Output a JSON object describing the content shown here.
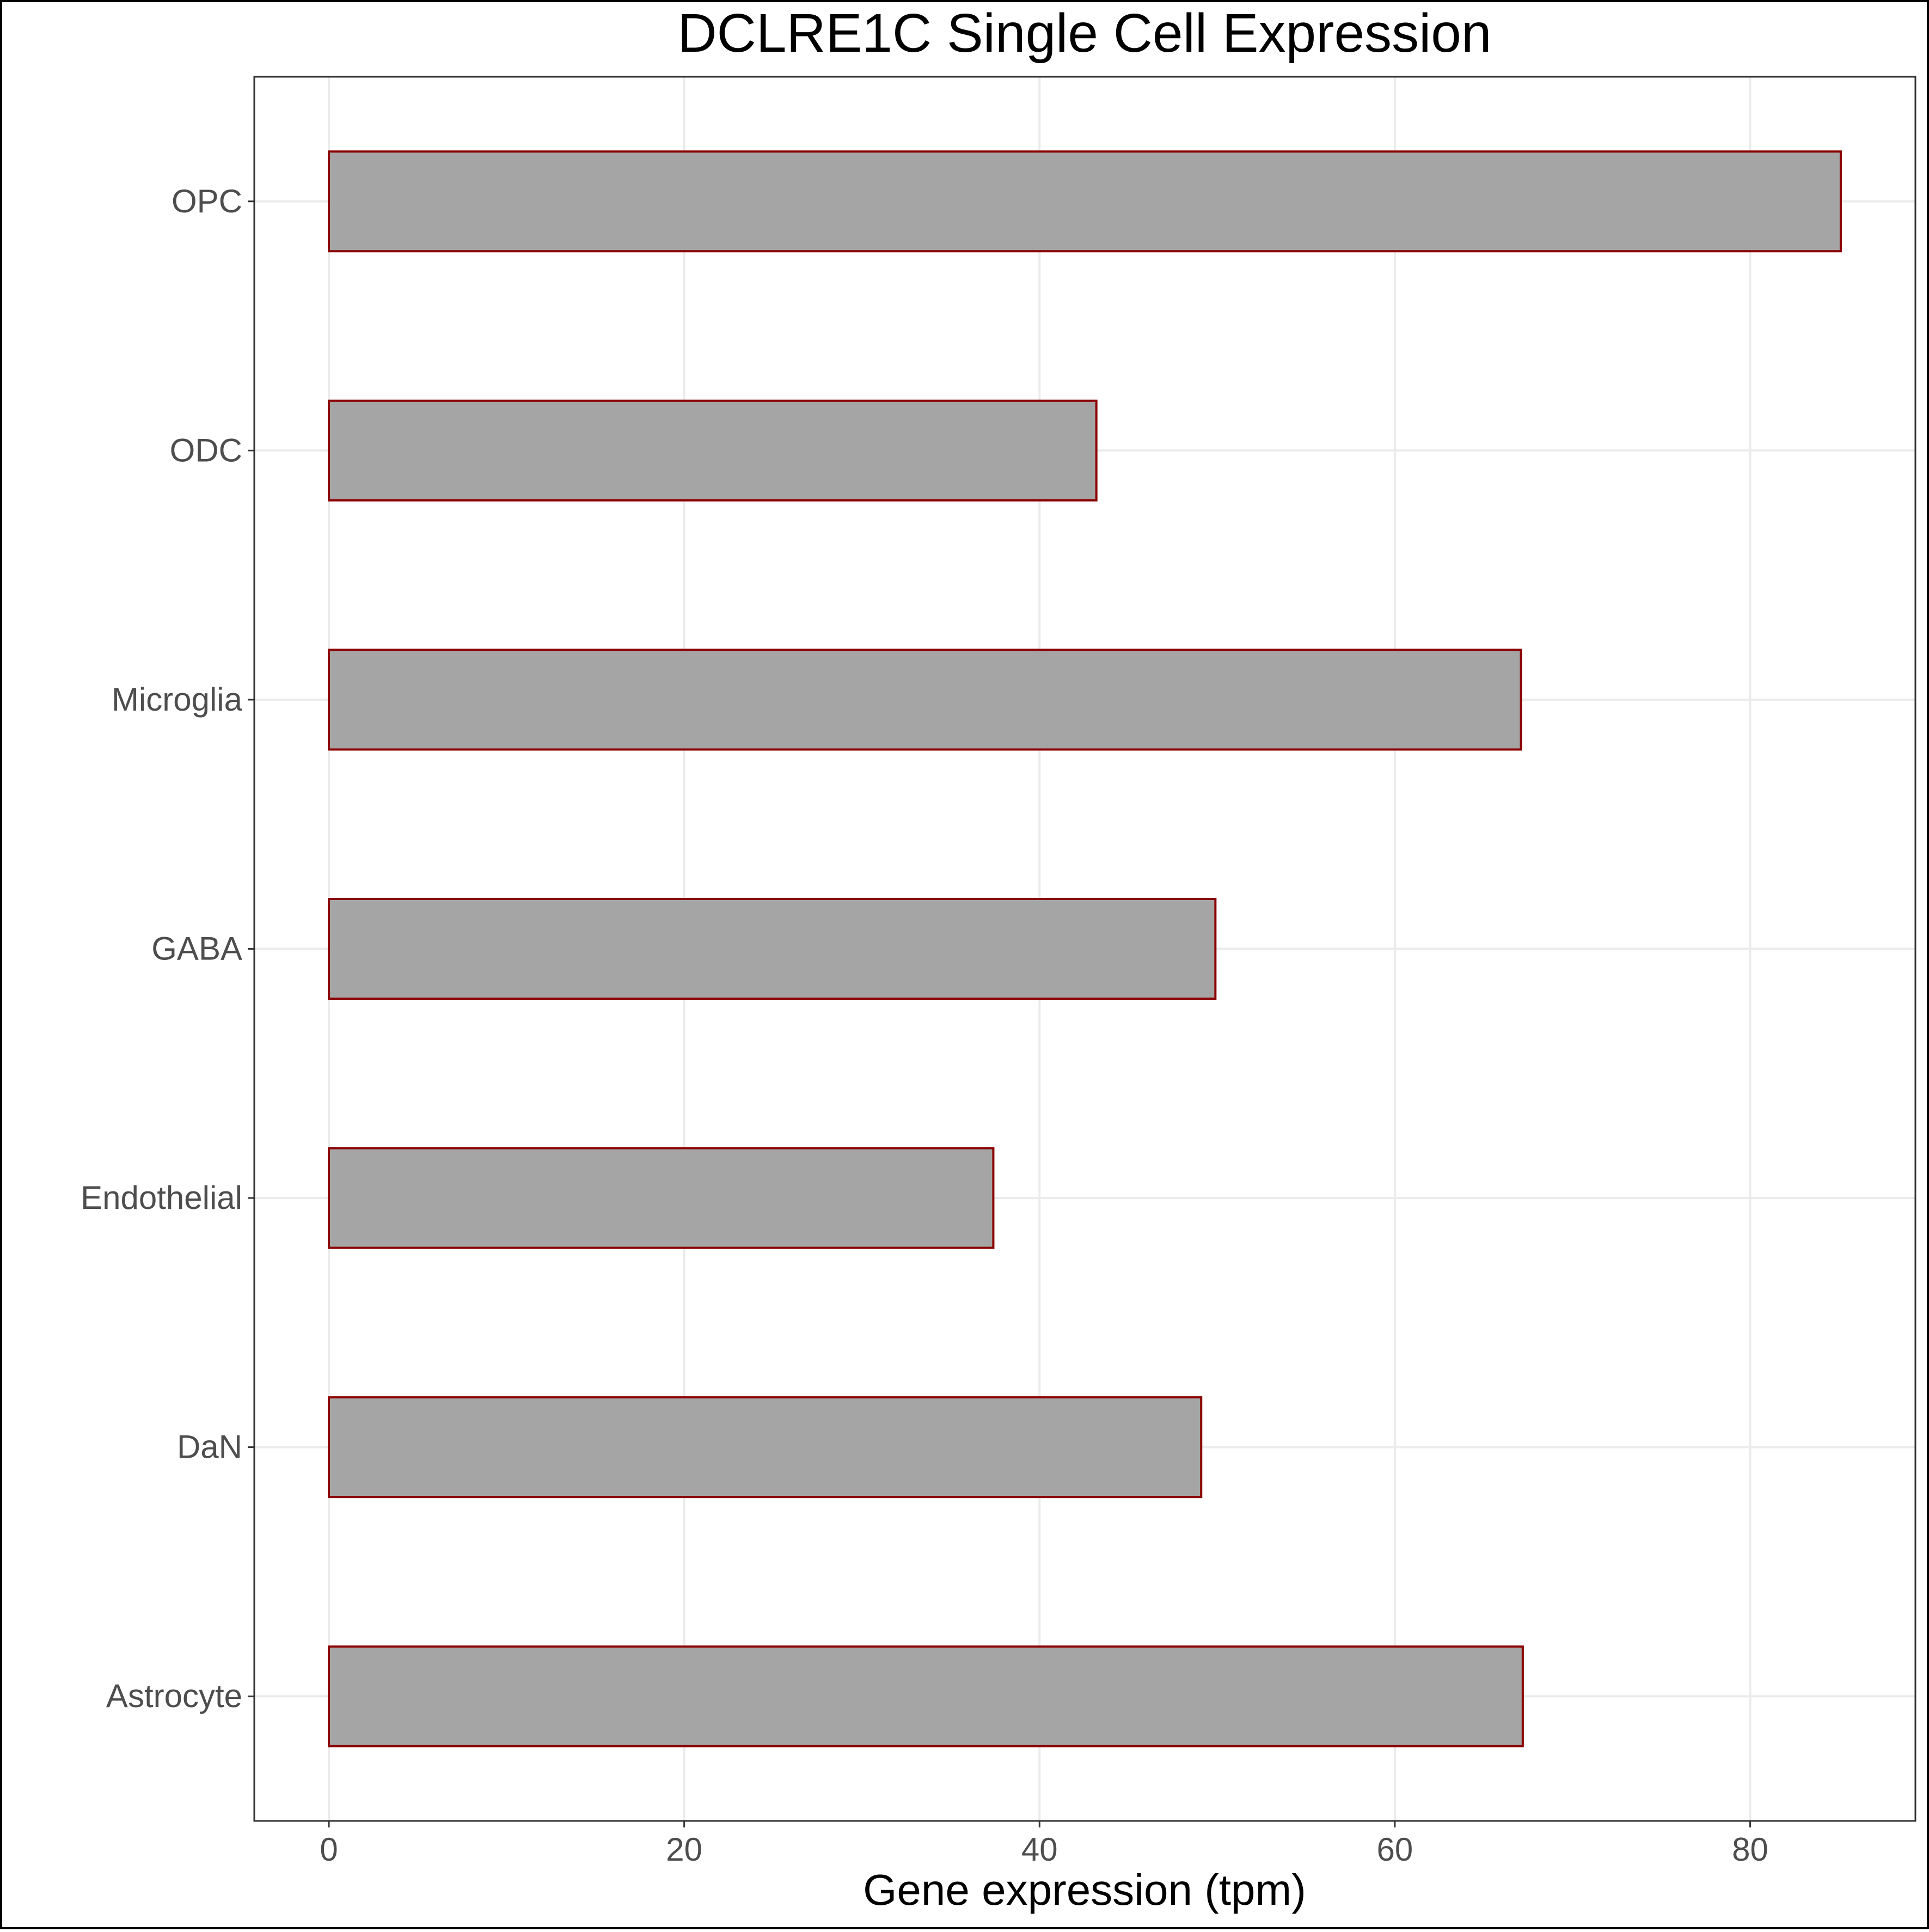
{
  "chart_data": {
    "type": "bar",
    "orientation": "horizontal",
    "title": "DCLRE1C Single Cell Expression",
    "xlabel": "Gene expression (tpm)",
    "ylabel": "",
    "categories": [
      "OPC",
      "ODC",
      "Microglia",
      "GABA",
      "Endothelial",
      "DaN",
      "Astrocyte"
    ],
    "values": [
      85.1,
      43.2,
      67.1,
      49.9,
      37.4,
      49.1,
      67.2
    ],
    "xlim": [
      -4.2,
      89.3
    ],
    "xticks": [
      0,
      20,
      40,
      60,
      80
    ],
    "grid": true,
    "legend": "none",
    "colors": {
      "bar_fill": "#a5a5a5",
      "bar_stroke": "#8b0000",
      "grid": "#ebebeb",
      "frame": "#333333"
    }
  }
}
